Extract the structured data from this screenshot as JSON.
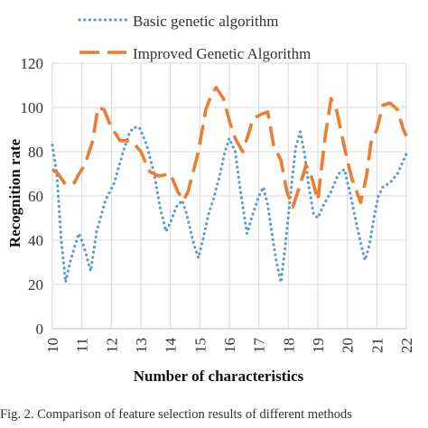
{
  "chart_data": {
    "type": "line",
    "xlabel": "Number of characteristics",
    "ylabel": "Recognition rate",
    "xlim": [
      10,
      22
    ],
    "ylim": [
      0,
      120
    ],
    "x_ticks": [
      10,
      11,
      12,
      13,
      14,
      15,
      16,
      17,
      18,
      19,
      20,
      21,
      22
    ],
    "y_ticks": [
      0,
      20,
      40,
      60,
      80,
      100,
      120
    ],
    "grid": true,
    "legend_position": "top-left",
    "series": [
      {
        "name": "Basic genetic algorithm",
        "style": "dotted",
        "color": "#5b9bd5",
        "points": [
          [
            10.0,
            83
          ],
          [
            10.15,
            70
          ],
          [
            10.3,
            40
          ],
          [
            10.45,
            21
          ],
          [
            10.6,
            30
          ],
          [
            10.75,
            37
          ],
          [
            10.9,
            43
          ],
          [
            11.05,
            38
          ],
          [
            11.3,
            26
          ],
          [
            11.5,
            44
          ],
          [
            11.8,
            58
          ],
          [
            12.1,
            66
          ],
          [
            12.4,
            80
          ],
          [
            12.6,
            88
          ],
          [
            12.75,
            91
          ],
          [
            12.95,
            91
          ],
          [
            13.2,
            83
          ],
          [
            13.45,
            70
          ],
          [
            13.65,
            55
          ],
          [
            13.85,
            44
          ],
          [
            14.0,
            48
          ],
          [
            14.2,
            55
          ],
          [
            14.4,
            58
          ],
          [
            14.55,
            52
          ],
          [
            14.8,
            38
          ],
          [
            14.95,
            32
          ],
          [
            15.1,
            40
          ],
          [
            15.3,
            52
          ],
          [
            15.45,
            58
          ],
          [
            15.65,
            68
          ],
          [
            15.85,
            80
          ],
          [
            16.0,
            86
          ],
          [
            16.2,
            80
          ],
          [
            16.4,
            60
          ],
          [
            16.6,
            43
          ],
          [
            16.8,
            52
          ],
          [
            17.0,
            60
          ],
          [
            17.15,
            64
          ],
          [
            17.3,
            56
          ],
          [
            17.5,
            38
          ],
          [
            17.6,
            30
          ],
          [
            17.75,
            21
          ],
          [
            17.9,
            38
          ],
          [
            18.1,
            64
          ],
          [
            18.25,
            82
          ],
          [
            18.4,
            89
          ],
          [
            18.55,
            79
          ],
          [
            18.7,
            64
          ],
          [
            18.85,
            52
          ],
          [
            19.0,
            50
          ],
          [
            19.2,
            56
          ],
          [
            19.45,
            62
          ],
          [
            19.7,
            70
          ],
          [
            19.9,
            72
          ],
          [
            20.1,
            61
          ],
          [
            20.3,
            48
          ],
          [
            20.5,
            36
          ],
          [
            20.6,
            31
          ],
          [
            20.75,
            38
          ],
          [
            20.9,
            50
          ],
          [
            21.05,
            60
          ],
          [
            21.2,
            64
          ],
          [
            21.45,
            66
          ],
          [
            21.7,
            70
          ],
          [
            21.9,
            76
          ],
          [
            22.0,
            79
          ]
        ]
      },
      {
        "name": "Improved Genetic Algorithm",
        "style": "long-dash",
        "color": "#ed7d31",
        "points": [
          [
            10.0,
            72
          ],
          [
            10.2,
            70
          ],
          [
            10.45,
            65
          ],
          [
            10.75,
            66
          ],
          [
            10.9,
            70
          ],
          [
            11.1,
            74
          ],
          [
            11.35,
            84
          ],
          [
            11.55,
            100
          ],
          [
            11.75,
            99
          ],
          [
            12.0,
            91
          ],
          [
            12.3,
            85
          ],
          [
            12.5,
            85
          ],
          [
            12.75,
            84
          ],
          [
            13.0,
            80
          ],
          [
            13.3,
            71
          ],
          [
            13.6,
            69
          ],
          [
            14.0,
            70
          ],
          [
            14.25,
            62
          ],
          [
            14.45,
            58
          ],
          [
            14.6,
            62
          ],
          [
            14.95,
            80
          ],
          [
            15.2,
            99
          ],
          [
            15.4,
            106
          ],
          [
            15.55,
            109
          ],
          [
            15.8,
            104
          ],
          [
            16.0,
            94
          ],
          [
            16.2,
            86
          ],
          [
            16.45,
            80
          ],
          [
            16.65,
            88
          ],
          [
            16.8,
            95
          ],
          [
            17.1,
            97
          ],
          [
            17.3,
            98
          ],
          [
            17.5,
            83
          ],
          [
            17.75,
            76
          ],
          [
            17.95,
            62
          ],
          [
            18.15,
            55
          ],
          [
            18.4,
            65
          ],
          [
            18.6,
            74
          ],
          [
            18.8,
            68
          ],
          [
            19.0,
            58
          ],
          [
            19.25,
            87
          ],
          [
            19.45,
            104
          ],
          [
            19.65,
            98
          ],
          [
            19.9,
            82
          ],
          [
            20.15,
            68
          ],
          [
            20.45,
            57
          ],
          [
            20.65,
            69
          ],
          [
            20.8,
            84
          ],
          [
            21.0,
            90
          ],
          [
            21.2,
            101
          ],
          [
            21.45,
            102
          ],
          [
            21.7,
            99
          ],
          [
            21.9,
            90
          ],
          [
            22.0,
            87
          ]
        ]
      }
    ]
  },
  "caption": "Fig. 2. Comparison of feature selection results of different methods"
}
